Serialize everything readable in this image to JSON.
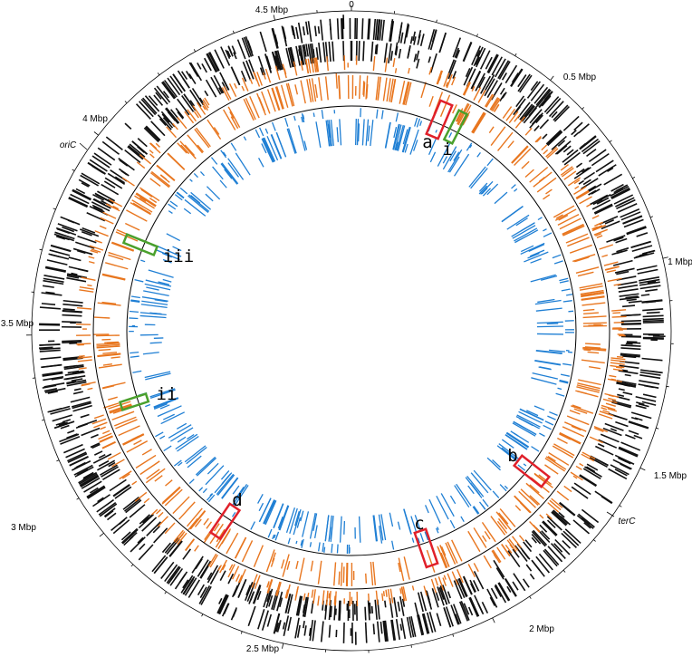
{
  "position_labels": [
    "0",
    "0.5 Mbp",
    "1 Mbp",
    "1.5 Mbp",
    "2 Mbp",
    "2.5 Mbp",
    "3 Mbp",
    "3.5 Mbp",
    "4 Mbp",
    "4.5 Mbp"
  ],
  "markers": [
    "oriC",
    "terC"
  ],
  "regions": [
    "a",
    "b",
    "c",
    "d",
    "i",
    "ii",
    "iii"
  ]
}
